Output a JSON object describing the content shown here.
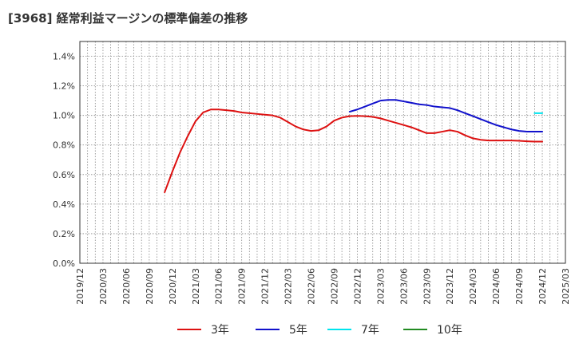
{
  "chart_data": {
    "type": "line",
    "title": "[3968]  経常利益マージンの標準偏差の推移",
    "xlabel": "",
    "ylabel": "",
    "ylim": [
      0,
      1.5
    ],
    "y_ticks": [
      0,
      0.2,
      0.4,
      0.6,
      0.8,
      1.0,
      1.2,
      1.4
    ],
    "y_tick_labels": [
      "0.0%",
      "0.2%",
      "0.4%",
      "0.6%",
      "0.8%",
      "1.0%",
      "1.2%",
      "1.4%"
    ],
    "x_range": [
      "2019/12",
      "2025/03"
    ],
    "x_tick_labels": [
      "2019/12",
      "2020/03",
      "2020/06",
      "2020/09",
      "2020/12",
      "2021/03",
      "2021/06",
      "2021/09",
      "2021/12",
      "2022/03",
      "2022/06",
      "2022/09",
      "2022/12",
      "2023/03",
      "2023/06",
      "2023/09",
      "2023/12",
      "2024/03",
      "2024/06",
      "2024/09",
      "2024/12",
      "2025/03"
    ],
    "grid": true,
    "legend_position": "bottom",
    "series": [
      {
        "name": "3年",
        "color": "#dd1111",
        "x": [
          "2020/11",
          "2020/12",
          "2021/01",
          "2021/02",
          "2021/03",
          "2021/04",
          "2021/05",
          "2021/06",
          "2021/07",
          "2021/08",
          "2021/09",
          "2021/10",
          "2021/11",
          "2021/12",
          "2022/01",
          "2022/02",
          "2022/03",
          "2022/04",
          "2022/05",
          "2022/06",
          "2022/07",
          "2022/08",
          "2022/09",
          "2022/10",
          "2022/11",
          "2022/12",
          "2023/01",
          "2023/02",
          "2023/03",
          "2023/04",
          "2023/05",
          "2023/06",
          "2023/07",
          "2023/08",
          "2023/09",
          "2023/10",
          "2023/11",
          "2023/12",
          "2024/01",
          "2024/02",
          "2024/03",
          "2024/04",
          "2024/05",
          "2024/06",
          "2024/07",
          "2024/08",
          "2024/09",
          "2024/10",
          "2024/11",
          "2024/12"
        ],
        "values": [
          0.48,
          0.62,
          0.75,
          0.86,
          0.96,
          1.02,
          1.04,
          1.04,
          1.035,
          1.03,
          1.02,
          1.015,
          1.01,
          1.005,
          1.0,
          0.985,
          0.955,
          0.925,
          0.905,
          0.895,
          0.9,
          0.925,
          0.965,
          0.985,
          0.995,
          0.997,
          0.995,
          0.99,
          0.98,
          0.965,
          0.95,
          0.935,
          0.92,
          0.9,
          0.88,
          0.88,
          0.89,
          0.9,
          0.89,
          0.865,
          0.845,
          0.835,
          0.83,
          0.83,
          0.83,
          0.83,
          0.828,
          0.825,
          0.823,
          0.823
        ]
      },
      {
        "name": "5年",
        "color": "#1111cc",
        "x": [
          "2022/11",
          "2022/12",
          "2023/01",
          "2023/02",
          "2023/03",
          "2023/04",
          "2023/05",
          "2023/06",
          "2023/07",
          "2023/08",
          "2023/09",
          "2023/10",
          "2023/11",
          "2023/12",
          "2024/01",
          "2024/02",
          "2024/03",
          "2024/04",
          "2024/05",
          "2024/06",
          "2024/07",
          "2024/08",
          "2024/09",
          "2024/10",
          "2024/11",
          "2024/12"
        ],
        "values": [
          1.025,
          1.04,
          1.06,
          1.08,
          1.1,
          1.105,
          1.105,
          1.095,
          1.085,
          1.075,
          1.07,
          1.06,
          1.055,
          1.05,
          1.035,
          1.015,
          0.995,
          0.975,
          0.955,
          0.935,
          0.92,
          0.905,
          0.895,
          0.89,
          0.89,
          0.89
        ]
      },
      {
        "name": "7年",
        "color": "#00e5ee",
        "x": [
          "2024/11",
          "2024/12"
        ],
        "values": [
          1.015,
          1.015
        ]
      },
      {
        "name": "10年",
        "color": "#228B22",
        "x": [],
        "values": []
      }
    ]
  }
}
